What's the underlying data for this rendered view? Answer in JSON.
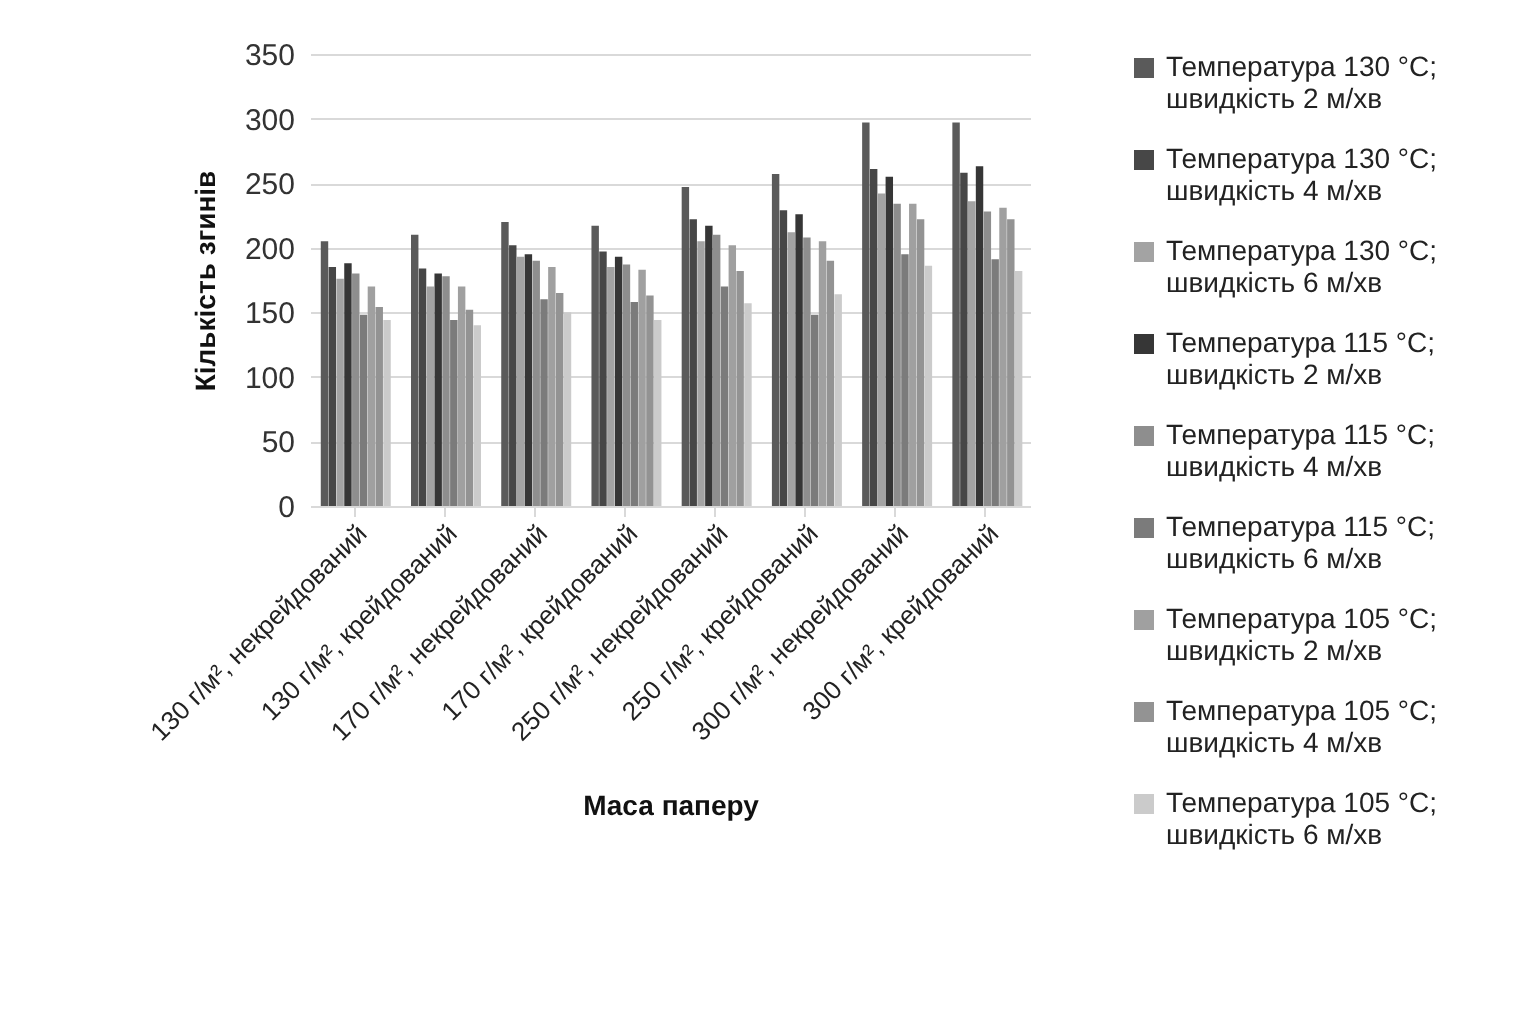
{
  "chart_data": {
    "type": "bar",
    "xlabel": "Маса паперу",
    "ylabel": "Кількість згинів",
    "categories": [
      "130 г/м²,  некрейдований",
      "130 г/м², крейдований",
      "170 г/м²,  некрейдований",
      "170 г/м², крейдований",
      "250 г/м²,  некрейдований",
      "250 г/м², крейдований",
      "300  г/м²,  некрейдований",
      "300 г/м², крейдований"
    ],
    "series": [
      {
        "name": "Температура 130 °C; швидкість  2 м/хв",
        "color": "#5a5a5a",
        "values": [
          205,
          210,
          220,
          217,
          247,
          257,
          297,
          297
        ]
      },
      {
        "name": "Температура 130 °C; швидкість  4 м/хв",
        "color": "#474747",
        "values": [
          185,
          184,
          202,
          197,
          222,
          229,
          261,
          258
        ]
      },
      {
        "name": "Температура 130 °C; швидкість 6 м/хв",
        "color": "#a3a3a3",
        "values": [
          176,
          170,
          193,
          185,
          205,
          212,
          242,
          236
        ]
      },
      {
        "name": "Температура 115 °C; швидкість  2 м/хв",
        "color": "#363636",
        "values": [
          188,
          180,
          195,
          193,
          217,
          226,
          255,
          263
        ]
      },
      {
        "name": "Температура 115 °C; швидкість  4 м/хв",
        "color": "#8e8e8e",
        "values": [
          180,
          178,
          190,
          187,
          210,
          208,
          234,
          228
        ]
      },
      {
        "name": "Температура 115 °C; швидкість 6 м/хв",
        "color": "#7b7b7b",
        "values": [
          148,
          144,
          160,
          158,
          170,
          148,
          195,
          191
        ]
      },
      {
        "name": "Температура 105 °C; швидкість  2 м/хв",
        "color": "#a0a0a0",
        "values": [
          170,
          170,
          185,
          183,
          202,
          205,
          234,
          231
        ]
      },
      {
        "name": "Температура 105 °C; швидкість  4 м/хв",
        "color": "#939393",
        "values": [
          154,
          152,
          165,
          163,
          182,
          190,
          222,
          222
        ]
      },
      {
        "name": "Температура 105 °C; швидкість 6 м/хв",
        "color": "#cbcbcb",
        "values": [
          144,
          140,
          150,
          144,
          157,
          164,
          186,
          182
        ]
      }
    ],
    "ylim": [
      0,
      350
    ],
    "yticks": [
      0,
      50,
      100,
      150,
      200,
      250,
      300,
      350
    ],
    "grid": "y",
    "legend": "right"
  }
}
